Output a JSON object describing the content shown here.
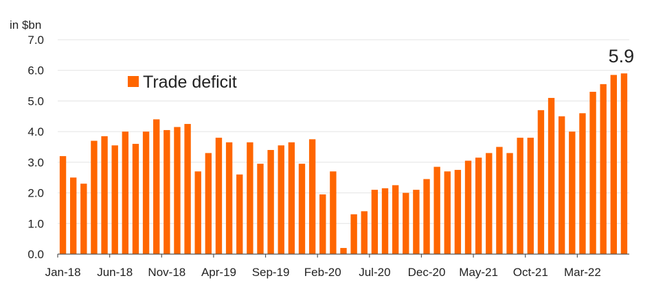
{
  "chart_data": {
    "type": "bar",
    "ylabel": "in $bn",
    "ylim": [
      0,
      7
    ],
    "yticks": [
      "0.0",
      "1.0",
      "2.0",
      "3.0",
      "4.0",
      "5.0",
      "6.0",
      "7.0"
    ],
    "grid": "horizontal",
    "legend": {
      "position": "upper-left",
      "entries": [
        "Trade deficit"
      ]
    },
    "series": [
      {
        "name": "Trade deficit",
        "color": "#ff6600",
        "values": [
          3.2,
          2.5,
          2.3,
          3.7,
          3.85,
          3.55,
          4.0,
          3.6,
          4.0,
          4.4,
          4.05,
          4.15,
          4.25,
          2.7,
          3.3,
          3.8,
          3.65,
          2.6,
          3.65,
          2.95,
          3.4,
          3.55,
          3.65,
          2.95,
          3.75,
          1.95,
          2.7,
          0.2,
          1.3,
          1.4,
          2.1,
          2.15,
          2.25,
          2.0,
          2.1,
          2.45,
          2.85,
          2.7,
          2.75,
          3.05,
          3.15,
          3.3,
          3.5,
          3.3,
          3.8,
          3.8,
          4.7,
          5.1,
          4.5,
          4.0,
          4.6,
          5.3,
          5.55,
          5.85,
          5.9
        ]
      }
    ],
    "categories": [
      "Jan-18",
      "Feb-18",
      "Mar-18",
      "Apr-18",
      "May-18",
      "Jun-18",
      "Jul-18",
      "Aug-18",
      "Sep-18",
      "Oct-18",
      "Nov-18",
      "Dec-18",
      "Jan-19",
      "Feb-19",
      "Mar-19",
      "Apr-19",
      "May-19",
      "Jun-19",
      "Jul-19",
      "Aug-19",
      "Sep-19",
      "Oct-19",
      "Nov-19",
      "Dec-19",
      "Jan-20",
      "Feb-20",
      "Mar-20",
      "Apr-20",
      "May-20",
      "Jun-20",
      "Jul-20",
      "Aug-20",
      "Sep-20",
      "Oct-20",
      "Nov-20",
      "Dec-20",
      "Jan-21",
      "Feb-21",
      "Mar-21",
      "Apr-21",
      "May-21",
      "Jun-21",
      "Jul-21",
      "Aug-21",
      "Sep-21",
      "Oct-21",
      "Nov-21",
      "Dec-21",
      "Jan-22",
      "Feb-22",
      "Mar-22",
      "Apr-22",
      "May-22",
      "Jun-22",
      "Jul-22"
    ],
    "x_tick_labels": [
      {
        "label": "Jan-18",
        "category": "Jan-18"
      },
      {
        "label": "Jun-18",
        "category": "Jun-18"
      },
      {
        "label": "Nov-18",
        "category": "Nov-18"
      },
      {
        "label": "Apr-19",
        "category": "Apr-19"
      },
      {
        "label": "Sep-19",
        "category": "Sep-19"
      },
      {
        "label": "Feb-20",
        "category": "Feb-20"
      },
      {
        "label": "Jul-20",
        "category": "Jul-20"
      },
      {
        "label": "Dec-20",
        "category": "Dec-20"
      },
      {
        "label": "May-21",
        "category": "May-21"
      },
      {
        "label": "Oct-21",
        "category": "Oct-21"
      },
      {
        "label": "Mar-22",
        "category": "Mar-22"
      }
    ],
    "annotations": [
      {
        "text": "5.9",
        "category": "Jul-22"
      }
    ]
  }
}
